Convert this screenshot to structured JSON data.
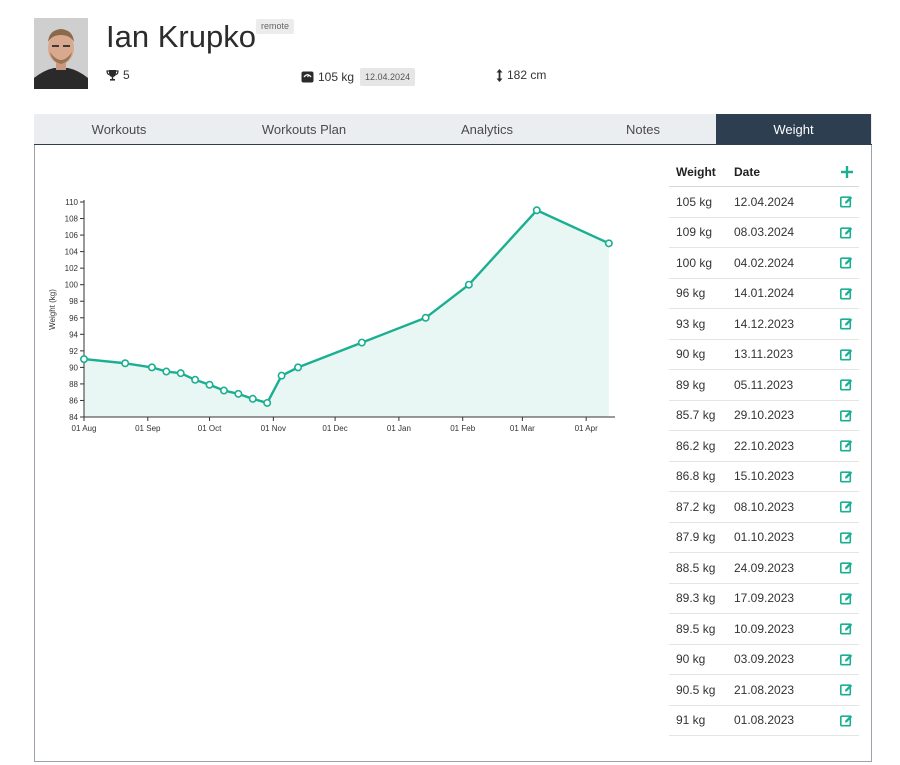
{
  "profile": {
    "name": "Ian Krupko",
    "badge": "remote",
    "trophies": "5",
    "weight": "105 kg",
    "weight_date": "12.04.2024",
    "height": "182 cm",
    "icons": {
      "trophy": "trophy-icon",
      "scale": "scale-icon",
      "height": "vertical-arrows-icon"
    }
  },
  "tabs": [
    {
      "label": "Workouts",
      "active": false
    },
    {
      "label": "Workouts Plan",
      "active": false
    },
    {
      "label": "Analytics",
      "active": false
    },
    {
      "label": "Notes",
      "active": false
    },
    {
      "label": "Weight",
      "active": true
    }
  ],
  "weight_table": {
    "headers": {
      "weight": "Weight",
      "date": "Date"
    },
    "add_icon": "plus-icon",
    "edit_icon": "edit-icon",
    "rows": [
      {
        "weight": "105 kg",
        "date": "12.04.2024"
      },
      {
        "weight": "109 kg",
        "date": "08.03.2024"
      },
      {
        "weight": "100 kg",
        "date": "04.02.2024"
      },
      {
        "weight": "96 kg",
        "date": "14.01.2024"
      },
      {
        "weight": "93 kg",
        "date": "14.12.2023"
      },
      {
        "weight": "90 kg",
        "date": "13.11.2023"
      },
      {
        "weight": "89 kg",
        "date": "05.11.2023"
      },
      {
        "weight": "85.7 kg",
        "date": "29.10.2023"
      },
      {
        "weight": "86.2 kg",
        "date": "22.10.2023"
      },
      {
        "weight": "86.8 kg",
        "date": "15.10.2023"
      },
      {
        "weight": "87.2 kg",
        "date": "08.10.2023"
      },
      {
        "weight": "87.9 kg",
        "date": "01.10.2023"
      },
      {
        "weight": "88.5 kg",
        "date": "24.09.2023"
      },
      {
        "weight": "89.3 kg",
        "date": "17.09.2023"
      },
      {
        "weight": "89.5 kg",
        "date": "10.09.2023"
      },
      {
        "weight": "90 kg",
        "date": "03.09.2023"
      },
      {
        "weight": "90.5 kg",
        "date": "21.08.2023"
      },
      {
        "weight": "91 kg",
        "date": "01.08.2023"
      }
    ]
  },
  "colors": {
    "accent": "#1aaf91",
    "area_fill": "#e8f7f3",
    "tab_active": "#2c3e50",
    "tab_bg": "#ebeef0"
  },
  "chart_data": {
    "type": "area",
    "ylabel": "Weight (kg)",
    "xlabel": "",
    "ylim": [
      84,
      110
    ],
    "xlim": [
      "2023-08-01",
      "2024-04-15"
    ],
    "grid": false,
    "y_ticks": [
      84,
      86,
      88,
      90,
      92,
      94,
      96,
      98,
      100,
      102,
      104,
      106,
      108,
      110
    ],
    "x_ticks": [
      {
        "date": "2023-08-01",
        "label": "01 Aug"
      },
      {
        "date": "2023-09-01",
        "label": "01 Sep"
      },
      {
        "date": "2023-10-01",
        "label": "01 Oct"
      },
      {
        "date": "2023-11-01",
        "label": "01 Nov"
      },
      {
        "date": "2023-12-01",
        "label": "01 Dec"
      },
      {
        "date": "2024-01-01",
        "label": "01 Jan"
      },
      {
        "date": "2024-02-01",
        "label": "01 Feb"
      },
      {
        "date": "2024-03-01",
        "label": "01 Mar"
      },
      {
        "date": "2024-04-01",
        "label": "01 Apr"
      }
    ],
    "series": [
      {
        "points": [
          {
            "x": "2023-08-01",
            "y": 91
          },
          {
            "x": "2023-08-21",
            "y": 90.5
          },
          {
            "x": "2023-09-03",
            "y": 90
          },
          {
            "x": "2023-09-10",
            "y": 89.5
          },
          {
            "x": "2023-09-17",
            "y": 89.3
          },
          {
            "x": "2023-09-24",
            "y": 88.5
          },
          {
            "x": "2023-10-01",
            "y": 87.9
          },
          {
            "x": "2023-10-08",
            "y": 87.2
          },
          {
            "x": "2023-10-15",
            "y": 86.8
          },
          {
            "x": "2023-10-22",
            "y": 86.2
          },
          {
            "x": "2023-10-29",
            "y": 85.7
          },
          {
            "x": "2023-11-05",
            "y": 89
          },
          {
            "x": "2023-11-13",
            "y": 90
          },
          {
            "x": "2023-12-14",
            "y": 93
          },
          {
            "x": "2024-01-14",
            "y": 96
          },
          {
            "x": "2024-02-04",
            "y": 100
          },
          {
            "x": "2024-03-08",
            "y": 109
          },
          {
            "x": "2024-04-12",
            "y": 105
          }
        ]
      }
    ]
  }
}
